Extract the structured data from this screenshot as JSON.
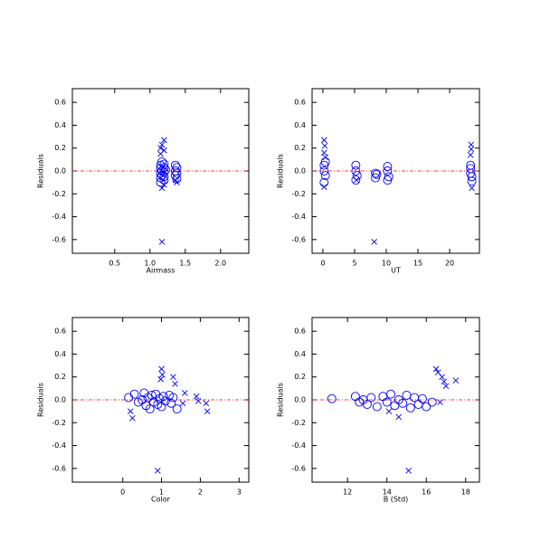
{
  "chart_data": [
    {
      "type": "scatter",
      "xlabel": "Airmass",
      "ylabel": "Residuals",
      "xlim": [
        -0.1,
        2.4
      ],
      "ylim": [
        -0.72,
        0.72
      ],
      "xticks": [
        0.5,
        {
          "value": 1,
          "label": "1.0"
        },
        1.5,
        {
          "value": 2,
          "label": "2.0"
        }
      ],
      "yticks": [
        -0.6,
        -0.4,
        -0.2,
        {
          "value": 0,
          "label": "0.0"
        },
        0.2,
        0.4,
        0.6
      ],
      "reference_line": 0,
      "reference_color": "#ff0000",
      "series": [
        {
          "marker": "circle",
          "color": "#0000ff",
          "x": [
            1.15,
            1.15,
            1.15,
            1.15,
            1.15,
            1.17,
            1.17,
            1.17,
            1.2,
            1.2,
            1.2,
            1.2,
            1.2,
            1.22,
            1.36,
            1.36,
            1.36,
            1.38,
            1.38,
            1.38
          ],
          "values": [
            0.05,
            0.02,
            -0.02,
            -0.06,
            -0.1,
            0.08,
            0,
            -0.04,
            0.06,
            0.03,
            -0.01,
            -0.05,
            -0.08,
            0.01,
            0.05,
            0,
            -0.04,
            0.03,
            -0.02,
            -0.07
          ]
        },
        {
          "marker": "x",
          "color": "#0000ff",
          "x": [
            1.15,
            1.17,
            1.2,
            1.2,
            1.15,
            1.17,
            1.2,
            1.36,
            1.38,
            1.17
          ],
          "values": [
            0.2,
            0.23,
            0.27,
            0.18,
            0.15,
            -0.15,
            -0.12,
            -0.08,
            -0.1,
            -0.62
          ]
        }
      ]
    },
    {
      "type": "scatter",
      "xlabel": "UT",
      "ylabel": "Residuals",
      "xlim": [
        -1.7,
        24.7
      ],
      "ylim": [
        -0.72,
        0.72
      ],
      "xticks": [
        0,
        5,
        10,
        15,
        20
      ],
      "yticks": [
        -0.6,
        -0.4,
        -0.2,
        {
          "value": 0,
          "label": "0.0"
        },
        0.2,
        0.4,
        0.6
      ],
      "reference_line": 0,
      "reference_color": "#ff0000",
      "series": [
        {
          "marker": "circle",
          "color": "#0000ff",
          "x": [
            0.2,
            0.2,
            0.4,
            0.2,
            0.4,
            5.2,
            5.2,
            5.4,
            5.2,
            8.3,
            8.3,
            8.5,
            10.2,
            10.2,
            10.4,
            10.2,
            23.3,
            23.3,
            23.5,
            23.5,
            23.3
          ],
          "values": [
            0.05,
            0,
            -0.04,
            -0.1,
            0.08,
            0.05,
            0,
            -0.04,
            -0.08,
            -0.02,
            -0.06,
            -0.03,
            0.04,
            0,
            -0.05,
            -0.08,
            0.02,
            -0.02,
            -0.05,
            -0.09,
            0.05
          ]
        },
        {
          "marker": "x",
          "color": "#0000ff",
          "x": [
            0.2,
            0.3,
            0.2,
            0.4,
            0.2,
            8.1,
            23.4,
            23.4,
            23.3,
            23.5,
            5.3
          ],
          "values": [
            0.27,
            0.22,
            0.16,
            0.12,
            -0.14,
            -0.62,
            0.23,
            0.19,
            0.14,
            -0.15,
            -0.08
          ]
        }
      ]
    },
    {
      "type": "scatter",
      "xlabel": "Color",
      "ylabel": "Residuals",
      "xlim": [
        -1.3,
        3.25
      ],
      "ylim": [
        -0.72,
        0.72
      ],
      "xticks": [
        0,
        1,
        2,
        3
      ],
      "yticks": [
        -0.6,
        -0.4,
        -0.2,
        {
          "value": 0,
          "label": "0.0"
        },
        0.2,
        0.4,
        0.6
      ],
      "reference_line": 0,
      "reference_color": "#ff0000",
      "series": [
        {
          "marker": "circle",
          "color": "#0000ff",
          "x": [
            0.15,
            0.3,
            0.4,
            0.5,
            0.55,
            0.6,
            0.65,
            0.7,
            0.75,
            0.8,
            0.85,
            0.9,
            0.95,
            1.0,
            1.05,
            1.1,
            1.2,
            1.25,
            1.3,
            1.4
          ],
          "values": [
            0.02,
            0.05,
            -0.02,
            0,
            0.06,
            -0.05,
            0.02,
            -0.08,
            0.04,
            -0.02,
            0.05,
            -0.04,
            0.01,
            -0.06,
            0.03,
            -0.01,
            0.04,
            -0.03,
            0.02,
            -0.08
          ]
        },
        {
          "marker": "x",
          "color": "#0000ff",
          "x": [
            0.2,
            0.25,
            1.0,
            1.02,
            0.98,
            1.3,
            1.35,
            1.6,
            1.55,
            1.9,
            1.95,
            2.15,
            2.18,
            0.9
          ],
          "values": [
            -0.1,
            -0.16,
            0.27,
            0.22,
            0.18,
            0.2,
            0.14,
            0.06,
            -0.03,
            0.03,
            -0.01,
            -0.03,
            -0.1,
            -0.62
          ]
        }
      ]
    },
    {
      "type": "scatter",
      "xlabel": "B (Std)",
      "ylabel": "Residuals",
      "xlim": [
        10.2,
        18.7
      ],
      "ylim": [
        -0.72,
        0.72
      ],
      "xticks": [
        12,
        14,
        16,
        18
      ],
      "yticks": [
        -0.6,
        -0.4,
        -0.2,
        {
          "value": 0,
          "label": "0.0"
        },
        0.2,
        0.4,
        0.6
      ],
      "reference_line": 0,
      "reference_color": "#ff0000",
      "series": [
        {
          "marker": "circle",
          "color": "#0000ff",
          "x": [
            11.2,
            12.4,
            12.6,
            12.8,
            13.0,
            13.2,
            13.5,
            13.8,
            14.0,
            14.2,
            14.4,
            14.6,
            14.8,
            15.0,
            15.2,
            15.4,
            15.6,
            15.8,
            16.0,
            16.3
          ],
          "values": [
            0.01,
            0.03,
            -0.02,
            0,
            -0.04,
            0.02,
            -0.06,
            0.03,
            -0.02,
            0.05,
            -0.05,
            0,
            -0.03,
            0.04,
            -0.07,
            0.02,
            -0.04,
            0.01,
            -0.06,
            -0.02
          ]
        },
        {
          "marker": "x",
          "color": "#0000ff",
          "x": [
            14.1,
            14.6,
            15.1,
            16.5,
            16.6,
            16.8,
            16.9,
            17.0,
            17.5,
            16.7
          ],
          "values": [
            -0.1,
            -0.15,
            -0.62,
            0.27,
            0.24,
            0.2,
            0.16,
            0.12,
            0.17,
            -0.02
          ]
        }
      ]
    }
  ]
}
